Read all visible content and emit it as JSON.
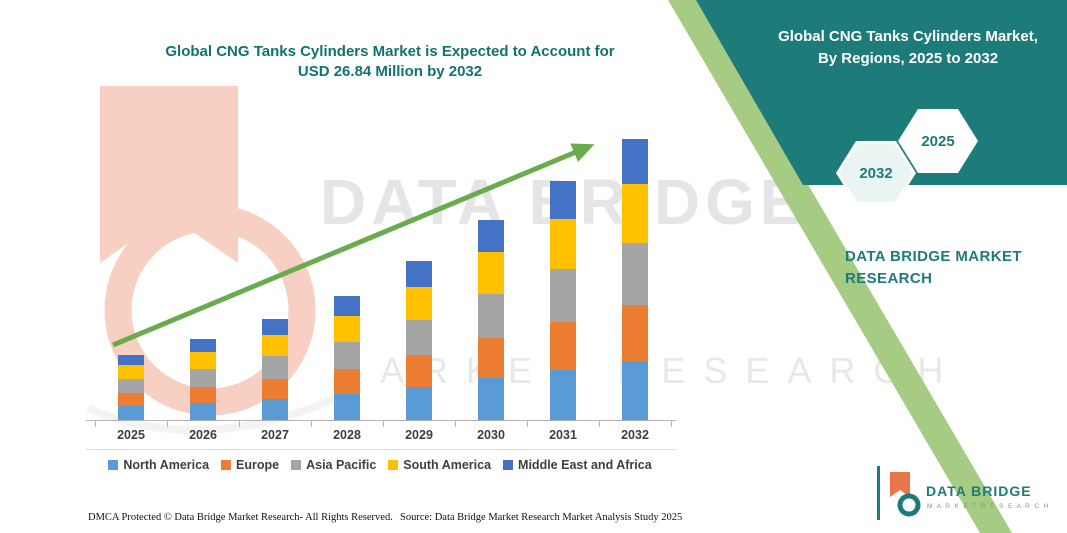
{
  "titles": {
    "chart_title_line1": "Global CNG Tanks Cylinders Market is Expected to Account for",
    "chart_title_line2": "USD 26.84 Million by 2032"
  },
  "right_panel": {
    "title_line1": "Global CNG Tanks Cylinders Market,",
    "title_line2": "By Regions, 2025 to 2032",
    "hexagon_back_label": "2032",
    "hexagon_front_label": "2025",
    "brand_line1": "DATA BRIDGE MARKET",
    "brand_line2": "RESEARCH",
    "panel_color": "#1d7c7a",
    "stripe_color": "#a6cc84"
  },
  "watermark": {
    "big_text": "DATA BRIDGE",
    "sub_text": "MARKET RESEARCH"
  },
  "logo": {
    "name": "DATA BRIDGE",
    "subtitle": "M A R K E T   R E S E A R C H"
  },
  "footer": {
    "dmca_text": "DMCA Protected © Data Bridge Market Research-  All Rights Reserved.",
    "source_text": "Source: Data Bridge Market Research  Market Analysis Study 2025"
  },
  "chart_data": {
    "type": "bar",
    "stacked": true,
    "title": "Global CNG Tanks Cylinders Market is Expected to Account for USD 26.84 Million by 2032",
    "unit": "USD Million",
    "categories": [
      "2025",
      "2026",
      "2027",
      "2028",
      "2029",
      "2030",
      "2031",
      "2032"
    ],
    "totals": [
      6.2,
      7.9,
      9.8,
      11.9,
      15.3,
      19.1,
      23.0,
      26.84
    ],
    "series": [
      {
        "name": "North America",
        "color": "#5B9BD5",
        "values": [
          1.3,
          1.66,
          2.06,
          2.5,
          3.21,
          4.01,
          4.83,
          5.64
        ]
      },
      {
        "name": "Europe",
        "color": "#ED7D31",
        "values": [
          1.24,
          1.58,
          1.96,
          2.38,
          3.06,
          3.82,
          4.6,
          5.37
        ]
      },
      {
        "name": "Asia Pacific",
        "color": "#A5A5A5",
        "values": [
          1.36,
          1.74,
          2.16,
          2.62,
          3.37,
          4.2,
          5.06,
          5.9
        ]
      },
      {
        "name": "South America",
        "color": "#FFC000",
        "values": [
          1.3,
          1.66,
          2.06,
          2.5,
          3.21,
          4.01,
          4.83,
          5.64
        ]
      },
      {
        "name": "Middle East and Africa",
        "color": "#4472C4",
        "values": [
          0.99,
          1.26,
          1.57,
          1.9,
          2.45,
          3.06,
          3.68,
          4.29
        ]
      }
    ],
    "ylim": [
      0,
      28
    ],
    "y_axis_visible": false,
    "grid": false,
    "legend_position": "bottom",
    "trend_arrow": true,
    "trend_arrow_color": "#6aab4e"
  }
}
